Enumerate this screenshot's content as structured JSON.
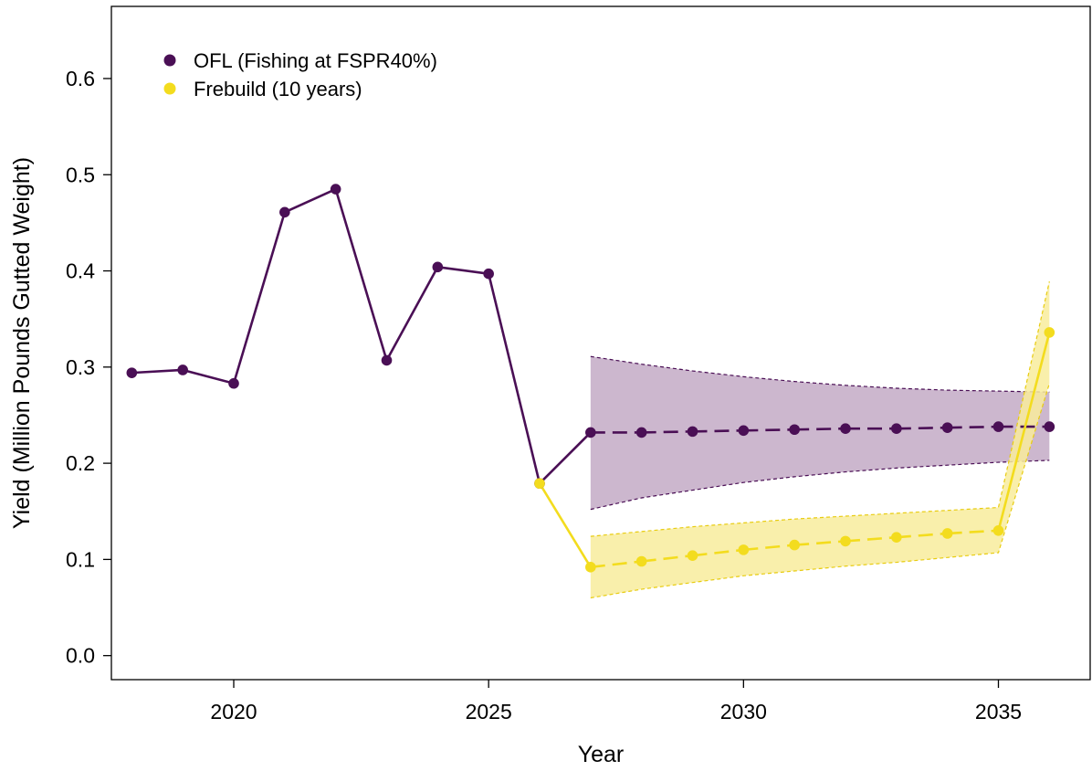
{
  "chart_data": {
    "type": "line",
    "title": "",
    "xlabel": "Year",
    "ylabel": "Yield (Million Pounds Gutted Weight)",
    "xlim": [
      2017.6,
      2036.8
    ],
    "ylim": [
      -0.025,
      0.675
    ],
    "x_ticks": [
      2020,
      2025,
      2030,
      2035
    ],
    "y_ticks": [
      0.0,
      0.1,
      0.2,
      0.3,
      0.4,
      0.5,
      0.6
    ],
    "y_tick_labels": [
      "0.0",
      "0.1",
      "0.2",
      "0.3",
      "0.4",
      "0.5",
      "0.6"
    ],
    "grid": false,
    "legend_position": "top-left",
    "series": [
      {
        "name": "OFL (Fishing at FSPR40%)",
        "color": "#4a0f55",
        "points": [
          {
            "x": 2018,
            "y": 0.294,
            "segment": "solid"
          },
          {
            "x": 2019,
            "y": 0.297,
            "segment": "solid"
          },
          {
            "x": 2020,
            "y": 0.283,
            "segment": "solid"
          },
          {
            "x": 2021,
            "y": 0.461,
            "segment": "solid"
          },
          {
            "x": 2022,
            "y": 0.485,
            "segment": "solid"
          },
          {
            "x": 2023,
            "y": 0.307,
            "segment": "solid"
          },
          {
            "x": 2024,
            "y": 0.404,
            "segment": "solid"
          },
          {
            "x": 2025,
            "y": 0.397,
            "segment": "solid"
          },
          {
            "x": 2026,
            "y": 0.179,
            "segment": "solid"
          },
          {
            "x": 2027,
            "y": 0.232,
            "segment": "solid"
          },
          {
            "x": 2028,
            "y": 0.232,
            "segment": "dashed"
          },
          {
            "x": 2029,
            "y": 0.233,
            "segment": "dashed"
          },
          {
            "x": 2030,
            "y": 0.234,
            "segment": "dashed"
          },
          {
            "x": 2031,
            "y": 0.235,
            "segment": "dashed"
          },
          {
            "x": 2032,
            "y": 0.236,
            "segment": "dashed"
          },
          {
            "x": 2033,
            "y": 0.236,
            "segment": "dashed"
          },
          {
            "x": 2034,
            "y": 0.237,
            "segment": "dashed"
          },
          {
            "x": 2035,
            "y": 0.238,
            "segment": "dashed"
          },
          {
            "x": 2036,
            "y": 0.238,
            "segment": "dashed"
          }
        ],
        "band": {
          "fill": "#c3aac5",
          "edge": "#4a0f55",
          "x": [
            2027,
            2028,
            2029,
            2030,
            2031,
            2032,
            2033,
            2034,
            2035,
            2036
          ],
          "upper": [
            0.311,
            0.303,
            0.296,
            0.29,
            0.285,
            0.281,
            0.278,
            0.276,
            0.275,
            0.274
          ],
          "lower": [
            0.152,
            0.164,
            0.172,
            0.18,
            0.186,
            0.191,
            0.195,
            0.198,
            0.201,
            0.203
          ]
        }
      },
      {
        "name": "Frebuild (10 years)",
        "color": "#f3dc1e",
        "points": [
          {
            "x": 2026,
            "y": 0.179,
            "segment": "solid"
          },
          {
            "x": 2027,
            "y": 0.092,
            "segment": "solid"
          },
          {
            "x": 2028,
            "y": 0.098,
            "segment": "dashed"
          },
          {
            "x": 2029,
            "y": 0.104,
            "segment": "dashed"
          },
          {
            "x": 2030,
            "y": 0.11,
            "segment": "dashed"
          },
          {
            "x": 2031,
            "y": 0.115,
            "segment": "dashed"
          },
          {
            "x": 2032,
            "y": 0.119,
            "segment": "dashed"
          },
          {
            "x": 2033,
            "y": 0.123,
            "segment": "dashed"
          },
          {
            "x": 2034,
            "y": 0.127,
            "segment": "dashed"
          },
          {
            "x": 2035,
            "y": 0.13,
            "segment": "dashed"
          },
          {
            "x": 2036,
            "y": 0.336,
            "segment": "solid"
          }
        ],
        "band": {
          "fill": "#f8ec9c",
          "edge": "#e8cc10",
          "x": [
            2027,
            2028,
            2029,
            2030,
            2031,
            2032,
            2033,
            2034,
            2035,
            2036
          ],
          "upper": [
            0.124,
            0.129,
            0.134,
            0.138,
            0.142,
            0.145,
            0.148,
            0.151,
            0.154,
            0.389
          ],
          "lower": [
            0.06,
            0.069,
            0.076,
            0.083,
            0.088,
            0.093,
            0.097,
            0.102,
            0.107,
            0.283
          ]
        }
      }
    ]
  }
}
